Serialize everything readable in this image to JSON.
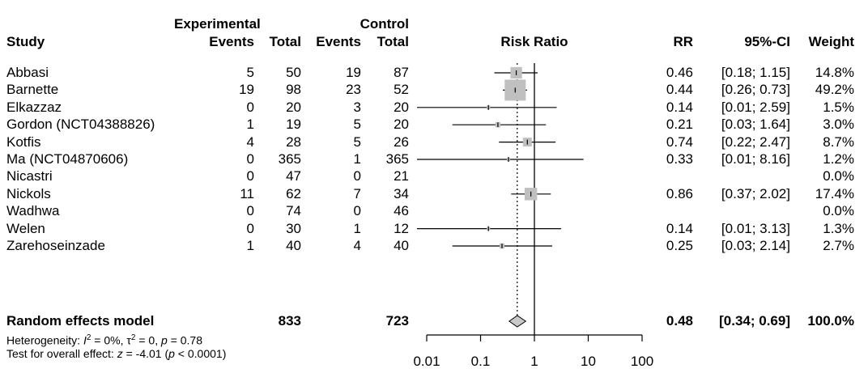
{
  "chart_data": {
    "type": "forest",
    "headers": {
      "study": "Study",
      "experimental": "Experimental",
      "control": "Control",
      "events": "Events",
      "total": "Total",
      "risk_ratio": "Risk Ratio",
      "rr": "RR",
      "ci": "95%-CI",
      "weight": "Weight"
    },
    "studies": [
      {
        "study": "Abbasi",
        "exp_events": "5",
        "exp_total": "50",
        "ctrl_events": "19",
        "ctrl_total": "87",
        "rr": 0.46,
        "lower": 0.18,
        "upper": 1.15,
        "rr_text": "0.46",
        "ci_text": "[0.18; 1.15]",
        "weight_text": "14.8%",
        "weight": 14.8
      },
      {
        "study": "Barnette",
        "exp_events": "19",
        "exp_total": "98",
        "ctrl_events": "23",
        "ctrl_total": "52",
        "rr": 0.44,
        "lower": 0.26,
        "upper": 0.73,
        "rr_text": "0.44",
        "ci_text": "[0.26; 0.73]",
        "weight_text": "49.2%",
        "weight": 49.2
      },
      {
        "study": "Elkazzaz",
        "exp_events": "0",
        "exp_total": "20",
        "ctrl_events": "3",
        "ctrl_total": "20",
        "rr": 0.14,
        "lower": 0.01,
        "upper": 2.59,
        "rr_text": "0.14",
        "ci_text": "[0.01; 2.59]",
        "weight_text": "1.5%",
        "weight": 1.5
      },
      {
        "study": "Gordon (NCT04388826)",
        "exp_events": "1",
        "exp_total": "19",
        "ctrl_events": "5",
        "ctrl_total": "20",
        "rr": 0.21,
        "lower": 0.03,
        "upper": 1.64,
        "rr_text": "0.21",
        "ci_text": "[0.03; 1.64]",
        "weight_text": "3.0%",
        "weight": 3.0
      },
      {
        "study": "Kotfis",
        "exp_events": "4",
        "exp_total": "28",
        "ctrl_events": "5",
        "ctrl_total": "26",
        "rr": 0.74,
        "lower": 0.22,
        "upper": 2.47,
        "rr_text": "0.74",
        "ci_text": "[0.22; 2.47]",
        "weight_text": "8.7%",
        "weight": 8.7
      },
      {
        "study": "Ma (NCT04870606)",
        "exp_events": "0",
        "exp_total": "365",
        "ctrl_events": "1",
        "ctrl_total": "365",
        "rr": 0.33,
        "lower": 0.01,
        "upper": 8.16,
        "rr_text": "0.33",
        "ci_text": "[0.01; 8.16]",
        "weight_text": "1.2%",
        "weight": 1.2
      },
      {
        "study": "Nicastri",
        "exp_events": "0",
        "exp_total": "47",
        "ctrl_events": "0",
        "ctrl_total": "21",
        "rr": null,
        "lower": null,
        "upper": null,
        "rr_text": "",
        "ci_text": "",
        "weight_text": "0.0%",
        "weight": 0.0
      },
      {
        "study": "Nickols",
        "exp_events": "11",
        "exp_total": "62",
        "ctrl_events": "7",
        "ctrl_total": "34",
        "rr": 0.86,
        "lower": 0.37,
        "upper": 2.02,
        "rr_text": "0.86",
        "ci_text": "[0.37; 2.02]",
        "weight_text": "17.4%",
        "weight": 17.4
      },
      {
        "study": "Wadhwa",
        "exp_events": "0",
        "exp_total": "74",
        "ctrl_events": "0",
        "ctrl_total": "46",
        "rr": null,
        "lower": null,
        "upper": null,
        "rr_text": "",
        "ci_text": "",
        "weight_text": "0.0%",
        "weight": 0.0
      },
      {
        "study": "Welen",
        "exp_events": "0",
        "exp_total": "30",
        "ctrl_events": "1",
        "ctrl_total": "12",
        "rr": 0.14,
        "lower": 0.01,
        "upper": 3.13,
        "rr_text": "0.14",
        "ci_text": "[0.01; 3.13]",
        "weight_text": "1.3%",
        "weight": 1.3
      },
      {
        "study": "Zarehoseinzade",
        "exp_events": "1",
        "exp_total": "40",
        "ctrl_events": "4",
        "ctrl_total": "40",
        "rr": 0.25,
        "lower": 0.03,
        "upper": 2.14,
        "rr_text": "0.25",
        "ci_text": "[0.03; 2.14]",
        "weight_text": "2.7%",
        "weight": 2.7
      }
    ],
    "summary": {
      "label": "Random effects model",
      "exp_total": "833",
      "ctrl_total": "723",
      "rr": 0.48,
      "lower": 0.34,
      "upper": 0.69,
      "rr_text": "0.48",
      "ci_text": "[0.34; 0.69]",
      "weight_text": "100.0%"
    },
    "heterogeneity_prefix": "Heterogeneity: ",
    "heterogeneity_i": "I",
    "heterogeneity_i_sup": "2",
    "heterogeneity_mid": " = 0%, ",
    "heterogeneity_tau": "τ",
    "heterogeneity_tau_sup": "2",
    "heterogeneity_rest": " = 0, ",
    "heterogeneity_p": "p",
    "heterogeneity_pval": " = 0.78",
    "overall_prefix": "Test for overall effect: ",
    "overall_z": "z",
    "overall_zval": " = -4.01 (",
    "overall_p": "p",
    "overall_pval": " < 0.0001)",
    "x_scale": "log",
    "x_ticks": [
      0.01,
      0.1,
      1,
      10,
      100
    ],
    "x_tick_labels": [
      "0.01",
      "0.1",
      "1",
      "10",
      "100"
    ],
    "xlim": [
      0.01,
      100
    ],
    "reference_line": 1
  }
}
